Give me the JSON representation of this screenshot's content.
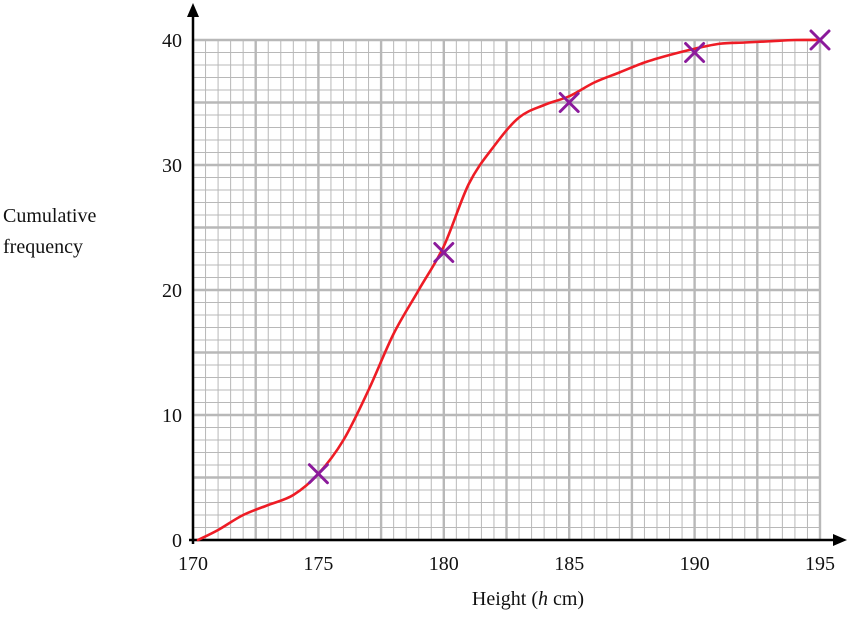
{
  "chart_data": {
    "type": "line",
    "title": "",
    "xlabel": "Height (h cm)",
    "xlabel_parts": {
      "before": "Height (",
      "var": "h",
      "after": " cm)"
    },
    "ylabel_lines": [
      "Cumulative",
      "frequency"
    ],
    "xlim": [
      170,
      195
    ],
    "ylim": [
      0,
      40
    ],
    "x_ticks": [
      170,
      175,
      180,
      185,
      190,
      195
    ],
    "y_ticks": [
      0,
      10,
      20,
      30,
      40
    ],
    "grid": true,
    "grid_minor_step_x": 0.5,
    "grid_minor_step_y": 1,
    "grid_major_step_x": 2.5,
    "grid_major_step_y": 5,
    "plotted_points": [
      {
        "x": 175,
        "y": 5.3
      },
      {
        "x": 180,
        "y": 23
      },
      {
        "x": 185,
        "y": 35
      },
      {
        "x": 190,
        "y": 39
      },
      {
        "x": 195,
        "y": 40
      }
    ],
    "curve": {
      "x": [
        170.2,
        171,
        172,
        173,
        174,
        175,
        176,
        177,
        178,
        179,
        180,
        181,
        182,
        183,
        184,
        185,
        186,
        187,
        188,
        189,
        190,
        191,
        192,
        193,
        194,
        195
      ],
      "y": [
        0,
        0.8,
        2.0,
        2.8,
        3.6,
        5.3,
        8.0,
        12.0,
        16.5,
        20.0,
        23.5,
        28.5,
        31.5,
        33.8,
        34.8,
        35.5,
        36.6,
        37.4,
        38.2,
        38.8,
        39.3,
        39.7,
        39.8,
        39.9,
        40.0,
        40.0
      ]
    },
    "colors": {
      "curve": "#ee1c25",
      "marker": "#8b1a9b",
      "grid": "#b8b8b8",
      "axis": "#000000"
    }
  }
}
